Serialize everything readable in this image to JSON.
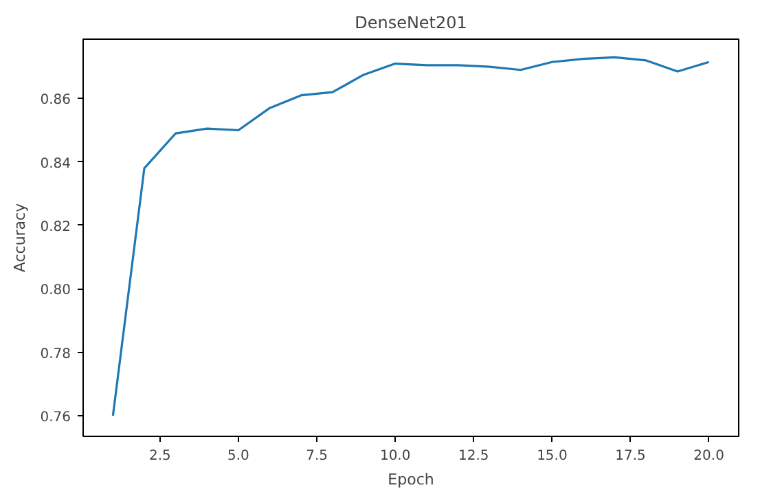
{
  "chart_data": {
    "type": "line",
    "title": "DenseNet201",
    "xlabel": "Epoch",
    "ylabel": "Accuracy",
    "x": [
      1,
      2,
      3,
      4,
      5,
      6,
      7,
      8,
      9,
      10,
      11,
      12,
      13,
      14,
      15,
      16,
      17,
      18,
      19,
      20
    ],
    "series": [
      {
        "color": "#1f77b4",
        "values": [
          0.76,
          0.838,
          0.849,
          0.8505,
          0.85,
          0.857,
          0.861,
          0.862,
          0.8675,
          0.871,
          0.8705,
          0.8705,
          0.87,
          0.869,
          0.8715,
          0.8725,
          0.873,
          0.872,
          0.8685,
          0.8715
        ]
      }
    ],
    "xlim": [
      0.05,
      20.95
    ],
    "ylim": [
      0.7535,
      0.8787
    ],
    "xticks": [
      2.5,
      {
        "value": 5,
        "label": "5.0"
      },
      7.5,
      {
        "value": 10,
        "label": "10.0"
      },
      12.5,
      {
        "value": 15,
        "label": "15.0"
      },
      17.5,
      {
        "value": 20,
        "label": "20.0"
      }
    ],
    "yticks": [
      {
        "value": 0.76,
        "label": "0.76"
      },
      {
        "value": 0.78,
        "label": "0.78"
      },
      {
        "value": 0.8,
        "label": "0.80"
      },
      {
        "value": 0.82,
        "label": "0.82"
      },
      {
        "value": 0.84,
        "label": "0.84"
      },
      {
        "value": 0.86,
        "label": "0.86"
      }
    ],
    "grid": false,
    "marker": "none",
    "line_style": "solid"
  }
}
